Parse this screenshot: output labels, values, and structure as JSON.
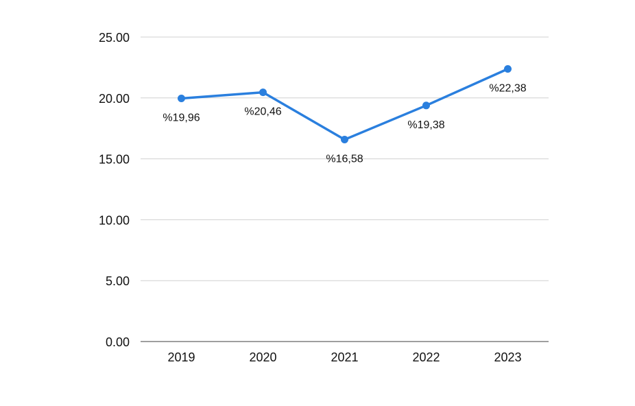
{
  "chart_data": {
    "type": "line",
    "categories": [
      "2019",
      "2020",
      "2021",
      "2022",
      "2023"
    ],
    "series": [
      {
        "values": [
          19.96,
          20.46,
          16.58,
          19.38,
          22.38
        ],
        "data_labels": [
          "%19,96",
          "%20,46",
          "%16,58",
          "%19,38",
          "%22,38"
        ]
      }
    ],
    "ylim": [
      0,
      25
    ],
    "yticks": [
      0,
      5,
      10,
      15,
      20,
      25
    ],
    "ytick_labels": [
      "0.00",
      "5.00",
      "10.00",
      "15.00",
      "20.00",
      "25.00"
    ],
    "grid": true,
    "legend": "none",
    "colors": {
      "line": "#2a7fde",
      "grid": "#d0d0d0",
      "axis": "#666666"
    }
  }
}
